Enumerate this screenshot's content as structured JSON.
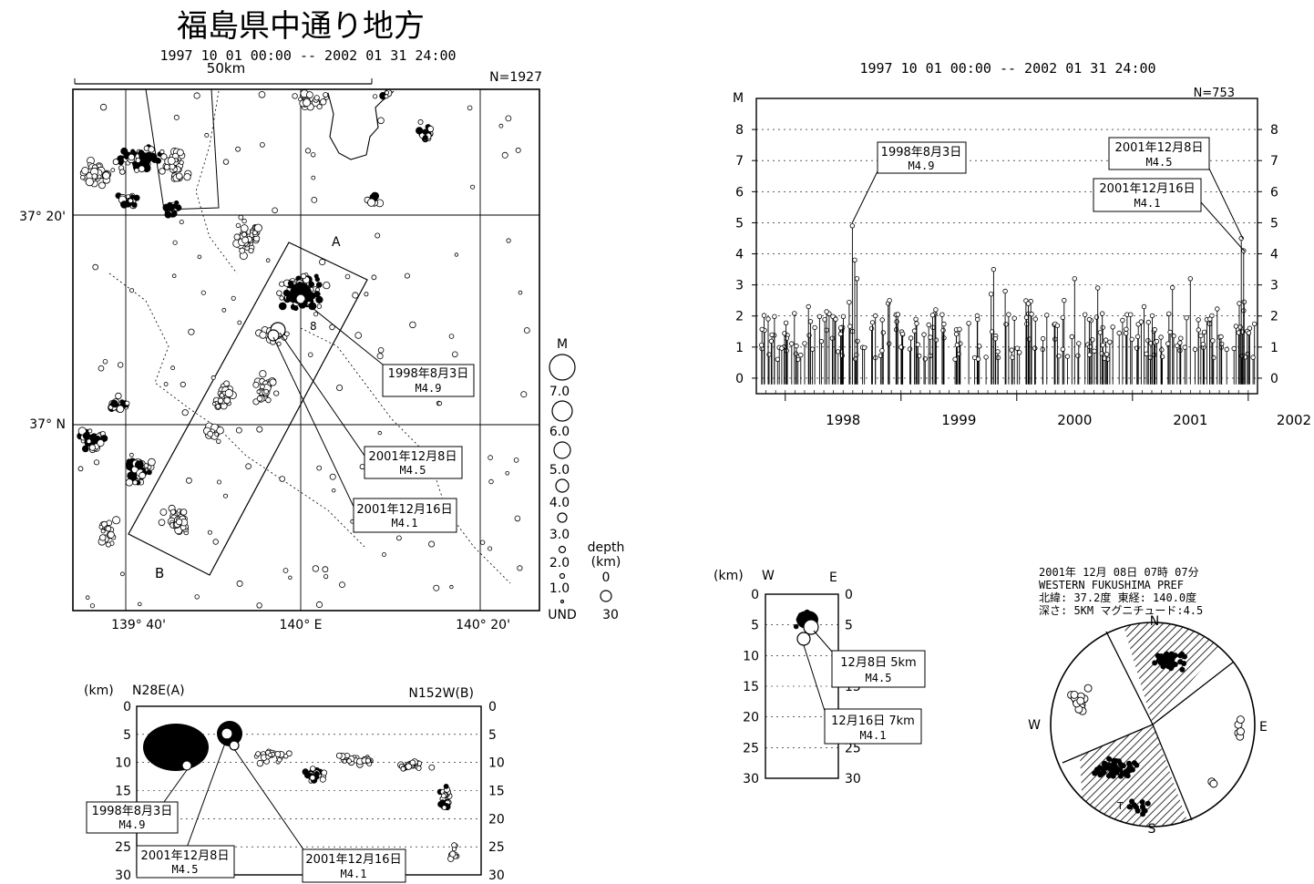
{
  "map": {
    "title": "福島県中通り地方",
    "period": "1997 10 01 00:00 -- 2002 01 31 24:00",
    "scale_label": "50km",
    "n_label": "N=1927",
    "lat_labels": [
      "37° 20'",
      "37° N"
    ],
    "lon_labels": [
      "139° 40'",
      "140° E",
      "140° 20'"
    ],
    "box_labels": [
      "A",
      "B"
    ],
    "callouts": [
      {
        "date": "1998年8月3日",
        "mag": "M4.9"
      },
      {
        "date": "2001年12月8日",
        "mag": "M4.5"
      },
      {
        "date": "2001年12月16日",
        "mag": "M4.1"
      }
    ],
    "mag_legend": {
      "title": "M",
      "labels": [
        "7.0",
        "6.0",
        "5.0",
        "4.0",
        "3.0",
        "2.0",
        "1.0",
        "UND"
      ]
    },
    "depth_legend": {
      "title": "depth",
      "unit": "(km)",
      "labels": [
        "0",
        "30"
      ]
    }
  },
  "timeseries": {
    "period": "1997 10 01 00:00 -- 2002 01 31 24:00",
    "n_label": "N=753",
    "y_title": "M",
    "callouts": [
      {
        "date": "1998年8月3日",
        "mag": "M4.9"
      },
      {
        "date": "2001年12月8日",
        "mag": "M4.5"
      },
      {
        "date": "2001年12月16日",
        "mag": "M4.1"
      }
    ]
  },
  "cross_section": {
    "unit": "(km)",
    "left_label": "N28E(A)",
    "right_label": "N152W(B)",
    "callouts": [
      {
        "date": "1998年8月3日",
        "mag": "M4.9"
      },
      {
        "date": "2001年12月8日",
        "mag": "M4.5"
      },
      {
        "date": "2001年12月16日",
        "mag": "M4.1"
      }
    ]
  },
  "ew_section": {
    "unit": "(km)",
    "w": "W",
    "e": "E",
    "callouts": [
      {
        "text": "12月8日 5km",
        "mag": "M4.5"
      },
      {
        "text": "12月16日 7km",
        "mag": "M4.1"
      }
    ]
  },
  "mechanism": {
    "lines": [
      "2001年 12月 08日 07時 07分",
      "WESTERN FUKUSHIMA PREF",
      "北緯: 37.2度  東経: 140.0度",
      "深さ: 5KM  マグニチュード:4.5"
    ],
    "n": "N",
    "s": "S",
    "w": "W",
    "e": "E",
    "t_label": "T"
  },
  "chart_data": [
    {
      "type": "scatter",
      "title": "福島県中通り地方",
      "subtitle": "1997 10 01 00:00 -- 2002 01 31 24:00",
      "xlabel": "",
      "ylabel": "",
      "x_ticks": [
        "139° 40'",
        "140° E",
        "140° 20'"
      ],
      "y_ticks": [
        "37° N",
        "37° 20'"
      ],
      "xlim": [
        139.55,
        140.4
      ],
      "ylim": [
        36.75,
        37.5
      ],
      "grid": true,
      "series": [
        {
          "x": [
            140.0,
            139.97,
            139.93,
            139.96,
            140.04,
            139.85,
            139.9,
            139.62,
            139.65,
            139.7,
            139.95,
            140.2
          ],
          "y": [
            37.18,
            37.1,
            37.05,
            37.0,
            36.95,
            37.3,
            36.9,
            37.0,
            36.95,
            37.1,
            37.3,
            37.35
          ]
        }
      ],
      "annotations": [
        "1998年8月3日 M4.9",
        "2001年12月8日 M4.5",
        "2001年12月16日 M4.1"
      ]
    },
    {
      "type": "bar",
      "title": "",
      "subtitle": "1997 10 01 00:00 -- 2002 01 31 24:00",
      "ylabel": "M",
      "x_ticks": [
        "1998",
        "1999",
        "2000",
        "2001",
        "2002"
      ],
      "y_ticks": [
        0,
        1,
        2,
        3,
        4,
        5,
        6,
        7,
        8
      ],
      "ylim": [
        -0.5,
        9
      ],
      "xlim": [
        1997.75,
        2002.08
      ],
      "x": [
        1998.58,
        2001.94,
        2001.96,
        1998.6,
        1998.62,
        1999.8,
        1999.9,
        2000.5,
        2000.7,
        2001.5,
        1998.2,
        1998.9,
        1999.3,
        2000.1,
        2001.1
      ],
      "values": [
        4.9,
        4.5,
        4.1,
        3.8,
        3.2,
        3.5,
        2.8,
        3.2,
        2.9,
        3.2,
        2.3,
        2.5,
        2.2,
        2.4,
        2.3
      ],
      "annotations": [
        "1998年8月3日 M4.9",
        "2001年12月8日 M4.5",
        "2001年12月16日 M4.1"
      ]
    },
    {
      "type": "scatter",
      "title": "",
      "xlabel": "",
      "ylabel": "(km)",
      "y_ticks": [
        0,
        5,
        10,
        15,
        20,
        25,
        30
      ],
      "ylim": [
        0,
        30
      ],
      "annotations": [
        "N28E(A)",
        "N152W(B)",
        "1998年8月3日 M4.9",
        "2001年12月8日 M4.5",
        "2001年12月16日 M4.1"
      ]
    },
    {
      "type": "scatter",
      "title": "",
      "ylabel": "(km)",
      "y_ticks": [
        0,
        5,
        10,
        15,
        20,
        25,
        30
      ],
      "ylim": [
        0,
        30
      ],
      "annotations": [
        "W",
        "E",
        "12月8日 5km M4.5",
        "12月16日 7km M4.1"
      ]
    }
  ]
}
